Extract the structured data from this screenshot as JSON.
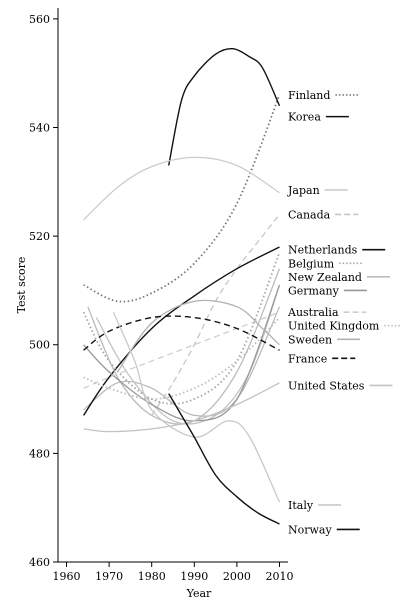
{
  "chart_data": {
    "type": "line",
    "xlabel": "Year",
    "ylabel": "Test score",
    "xlim": [
      1958,
      2012
    ],
    "ylim": [
      460,
      562
    ],
    "x_ticks": [
      1960,
      1970,
      1980,
      1990,
      2000,
      2010
    ],
    "y_ticks": [
      460,
      480,
      500,
      520,
      540,
      560
    ],
    "legend_placement": "right",
    "series": [
      {
        "name": "Finland",
        "color": "#777777",
        "dash": "dot",
        "points": [
          [
            1964,
            511
          ],
          [
            1972,
            508
          ],
          [
            1980,
            509.5
          ],
          [
            1990,
            515
          ],
          [
            2000,
            526
          ],
          [
            2010,
            546
          ]
        ]
      },
      {
        "name": "Korea",
        "color": "#111111",
        "dash": "solid",
        "points": [
          [
            1984,
            533
          ],
          [
            1987,
            545
          ],
          [
            1990,
            549.5
          ],
          [
            1995,
            553.5
          ],
          [
            1999,
            554.5
          ],
          [
            2003,
            553
          ],
          [
            2006,
            551
          ],
          [
            2010,
            544
          ]
        ]
      },
      {
        "name": "Japan",
        "color": "#cccccc",
        "dash": "solid",
        "points": [
          [
            1964,
            523
          ],
          [
            1972,
            529
          ],
          [
            1980,
            532.8
          ],
          [
            1990,
            534.5
          ],
          [
            2000,
            533
          ],
          [
            2010,
            528
          ]
        ]
      },
      {
        "name": "Canada",
        "color": "#c6c6c6",
        "dash": "dash",
        "points": [
          [
            1980,
            487
          ],
          [
            1985,
            493
          ],
          [
            1990,
            500
          ],
          [
            1995,
            508
          ],
          [
            2000,
            514
          ],
          [
            2005,
            519
          ],
          [
            2010,
            524
          ]
        ]
      },
      {
        "name": "Netherlands",
        "color": "#111111",
        "dash": "solid",
        "points": [
          [
            1964,
            487
          ],
          [
            1970,
            494
          ],
          [
            1980,
            503
          ],
          [
            1990,
            509
          ],
          [
            2000,
            514
          ],
          [
            2010,
            518
          ]
        ]
      },
      {
        "name": "Belgium",
        "color": "#a6a6a6",
        "dash": "dot",
        "points": [
          [
            1964,
            506
          ],
          [
            1970,
            497
          ],
          [
            1980,
            490
          ],
          [
            1990,
            490
          ],
          [
            2000,
            497
          ],
          [
            2010,
            517
          ]
        ]
      },
      {
        "name": "New Zealand",
        "color": "#bbbbbb",
        "dash": "solid",
        "points": [
          [
            1965,
            507
          ],
          [
            1972,
            494
          ],
          [
            1980,
            487
          ],
          [
            1990,
            486
          ],
          [
            2000,
            495
          ],
          [
            2010,
            514
          ]
        ]
      },
      {
        "name": "Germany",
        "color": "#999999",
        "dash": "solid",
        "points": [
          [
            1964,
            500
          ],
          [
            1970,
            495
          ],
          [
            1980,
            489
          ],
          [
            1990,
            486
          ],
          [
            2000,
            490
          ],
          [
            2010,
            511
          ]
        ]
      },
      {
        "name": "Australia",
        "color": "#cfcfcf",
        "dash": "dash",
        "points": [
          [
            1964,
            492
          ],
          [
            1970,
            494
          ],
          [
            1980,
            497
          ],
          [
            1990,
            500
          ],
          [
            2000,
            503
          ],
          [
            2010,
            506
          ]
        ]
      },
      {
        "name": "United Kingdom",
        "color": "#bdbdbd",
        "dash": "dot",
        "points": [
          [
            1964,
            494
          ],
          [
            1970,
            492
          ],
          [
            1980,
            490
          ],
          [
            1990,
            492
          ],
          [
            2000,
            497
          ],
          [
            2010,
            505
          ]
        ]
      },
      {
        "name": "Sweden",
        "color": "#b3b3b3",
        "dash": "solid",
        "points": [
          [
            1972,
            495
          ],
          [
            1980,
            504
          ],
          [
            1990,
            508
          ],
          [
            2000,
            507
          ],
          [
            2006,
            503
          ],
          [
            2010,
            500
          ]
        ]
      },
      {
        "name": "France",
        "color": "#111111",
        "dash": "dash",
        "points": [
          [
            1964,
            499
          ],
          [
            1970,
            502.5
          ],
          [
            1980,
            505
          ],
          [
            1990,
            505
          ],
          [
            2000,
            503
          ],
          [
            2010,
            499
          ]
        ]
      },
      {
        "name": "United States",
        "color": "#c3c3c3",
        "dash": "solid",
        "points": [
          [
            1964,
            484.5
          ],
          [
            1970,
            484
          ],
          [
            1980,
            484.5
          ],
          [
            1990,
            486
          ],
          [
            2000,
            489
          ],
          [
            2010,
            493
          ]
        ]
      },
      {
        "name": "Italy",
        "color": "#c9c9c9",
        "dash": "solid",
        "points": [
          [
            1971,
            506
          ],
          [
            1976,
            497
          ],
          [
            1980,
            488
          ],
          [
            1990,
            483
          ],
          [
            1998,
            486
          ],
          [
            2003,
            483
          ],
          [
            2010,
            471
          ]
        ]
      },
      {
        "name": "Norway",
        "color": "#111111",
        "dash": "solid",
        "points": [
          [
            1984,
            491
          ],
          [
            1987,
            487
          ],
          [
            1990,
            483
          ],
          [
            1995,
            476
          ],
          [
            2000,
            472
          ],
          [
            2005,
            469
          ],
          [
            2010,
            467
          ]
        ]
      }
    ],
    "label_positions": [
      {
        "name": "Finland",
        "y": 546
      },
      {
        "name": "Korea",
        "y": 542
      },
      {
        "name": "Japan",
        "y": 528.5
      },
      {
        "name": "Canada",
        "y": 524
      },
      {
        "name": "Netherlands",
        "y": 517.5
      },
      {
        "name": "Belgium",
        "y": 515
      },
      {
        "name": "New Zealand",
        "y": 512.5
      },
      {
        "name": "Germany",
        "y": 510
      },
      {
        "name": "Australia",
        "y": 506
      },
      {
        "name": "United Kingdom",
        "y": 503.5
      },
      {
        "name": "Sweden",
        "y": 501
      },
      {
        "name": "France",
        "y": 497.5
      },
      {
        "name": "United States",
        "y": 492.5
      },
      {
        "name": "Italy",
        "y": 470.5
      },
      {
        "name": "Norway",
        "y": 466
      }
    ],
    "extra_segments": [
      {
        "color": "#b7b7b7",
        "dash": "solid",
        "points": [
          [
            1964,
            488
          ],
          [
            1972,
            493
          ],
          [
            1980,
            492
          ],
          [
            1990,
            487
          ],
          [
            2000,
            490
          ],
          [
            2010,
            507
          ]
        ]
      },
      {
        "color": "#bfbfbf",
        "dash": "solid",
        "points": [
          [
            1967,
            505
          ],
          [
            1975,
            494
          ],
          [
            1985,
            486
          ],
          [
            1995,
            487
          ],
          [
            2003,
            495
          ],
          [
            2010,
            511
          ]
        ]
      }
    ]
  }
}
